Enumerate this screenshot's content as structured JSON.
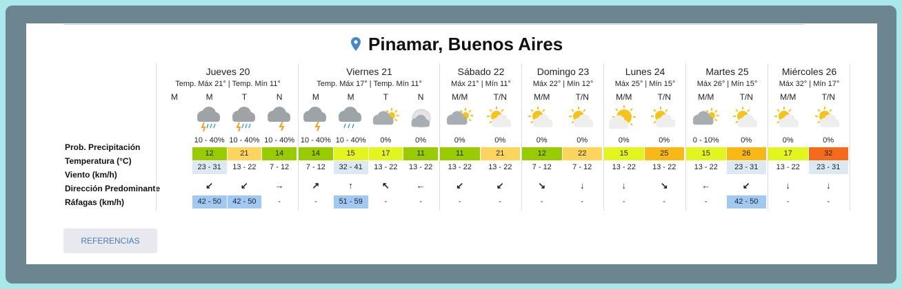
{
  "header": {
    "title": "Pinamar, Buenos Aires"
  },
  "row_labels": [
    "Prob. Precipitación",
    "Temperatura (°C)",
    "Viento (km/h)",
    "Dirección Predominante",
    "Ráfagas (km/h)"
  ],
  "days": [
    {
      "name": "Jueves 20",
      "summary": "Temp. Máx 21° | Temp. Mín 11°",
      "periods": [
        {
          "label": "M"
        },
        {
          "label": "M",
          "icon": "storm-rain",
          "precip": "10 - 40%",
          "temp": 12,
          "temp_color": "#99cc00",
          "wind": "23 - 31",
          "wind_color": "#dce9f5",
          "dir": "↙",
          "gust": "42 - 50",
          "gust_color": "#9fc8f2"
        },
        {
          "label": "T",
          "icon": "storm-rain",
          "precip": "10 - 40%",
          "temp": 21,
          "temp_color": "#fdd55c",
          "wind": "13 - 22",
          "dir": "↙",
          "gust": "42 - 50",
          "gust_color": "#9fc8f2"
        },
        {
          "label": "N",
          "icon": "storm",
          "precip": "10 - 40%",
          "temp": 14,
          "temp_color": "#99cc00",
          "wind": "7 - 12",
          "dir": "→",
          "gust": "-"
        }
      ]
    },
    {
      "name": "Viernes 21",
      "summary": "Temp. Máx 17° | Temp. Mín 11°",
      "periods": [
        {
          "label": "M",
          "icon": "storm",
          "precip": "10 - 40%",
          "temp": 14,
          "temp_color": "#99cc00",
          "wind": "7 - 12",
          "dir": "↗",
          "gust": "-"
        },
        {
          "label": "M",
          "icon": "rain",
          "precip": "10 - 40%",
          "temp": 15,
          "temp_color": "#e3f51f",
          "wind": "32 - 41",
          "wind_color": "#dce9f5",
          "dir": "↑",
          "gust": "51 - 59",
          "gust_color": "#9fc8f2"
        },
        {
          "label": "T",
          "icon": "cloud-sun",
          "precip": "0%",
          "temp": 17,
          "temp_color": "#e3f51f",
          "wind": "13 - 22",
          "dir": "↖",
          "gust": "-"
        },
        {
          "label": "N",
          "icon": "moon-cloud",
          "precip": "0%",
          "temp": 11,
          "temp_color": "#99cc00",
          "wind": "13 - 22",
          "dir": "←",
          "gust": "-"
        }
      ]
    },
    {
      "name": "Sábado 22",
      "summary": "Máx 21° | Mín 11°",
      "periods": [
        {
          "label": "M/M",
          "icon": "cloud-sun",
          "precip": "0%",
          "temp": 11,
          "temp_color": "#99cc00",
          "wind": "13 - 22",
          "dir": "↙",
          "gust": "-"
        },
        {
          "label": "T/N",
          "icon": "sun-cloud",
          "precip": "0%",
          "temp": 21,
          "temp_color": "#fdd55c",
          "wind": "13 - 22",
          "dir": "↙",
          "gust": "-"
        }
      ]
    },
    {
      "name": "Domingo 23",
      "summary": "Máx 22° | Mín 12°",
      "periods": [
        {
          "label": "M/M",
          "icon": "sun-cloud",
          "precip": "0%",
          "temp": 12,
          "temp_color": "#99cc00",
          "wind": "7 - 12",
          "dir": "↘",
          "gust": "-"
        },
        {
          "label": "T/N",
          "icon": "sun-cloud",
          "precip": "0%",
          "temp": 22,
          "temp_color": "#fdd55c",
          "wind": "7 - 12",
          "dir": "↓",
          "gust": "-"
        }
      ]
    },
    {
      "name": "Lunes 24",
      "summary": "Máx 25° | Mín 15°",
      "periods": [
        {
          "label": "M/M",
          "icon": "sun",
          "precip": "0%",
          "temp": 15,
          "temp_color": "#e3f51f",
          "wind": "13 - 22",
          "dir": "↓",
          "gust": "-"
        },
        {
          "label": "T/N",
          "icon": "sun-cloud",
          "precip": "0%",
          "temp": 25,
          "temp_color": "#f9b815",
          "wind": "13 - 22",
          "dir": "↘",
          "gust": "-"
        }
      ]
    },
    {
      "name": "Martes 25",
      "summary": "Máx 26° | Mín 15°",
      "periods": [
        {
          "label": "M/M",
          "icon": "cloud-sun",
          "precip": "0 - 10%",
          "temp": 15,
          "temp_color": "#e3f51f",
          "wind": "13 - 22",
          "dir": "←",
          "gust": "-"
        },
        {
          "label": "T/N",
          "icon": "sun-cloud",
          "precip": "0%",
          "temp": 26,
          "temp_color": "#f9b815",
          "wind": "23 - 31",
          "wind_color": "#dce9f5",
          "dir": "↙",
          "gust": "42 - 50",
          "gust_color": "#9fc8f2"
        }
      ]
    },
    {
      "name": "Miércoles 26",
      "summary": "Máx 32° | Mín 17°",
      "periods": [
        {
          "label": "M/M",
          "icon": "sun-cloud",
          "precip": "0%",
          "temp": 17,
          "temp_color": "#e3f51f",
          "wind": "13 - 22",
          "dir": "↓",
          "gust": "-"
        },
        {
          "label": "T/N",
          "icon": "sun-cloud",
          "precip": "0%",
          "temp": 32,
          "temp_color": "#f56a1b",
          "wind": "23 - 31",
          "wind_color": "#dce9f5",
          "dir": "↓",
          "gust": "-"
        }
      ]
    }
  ],
  "button": {
    "label": "REFERENCIAS"
  }
}
